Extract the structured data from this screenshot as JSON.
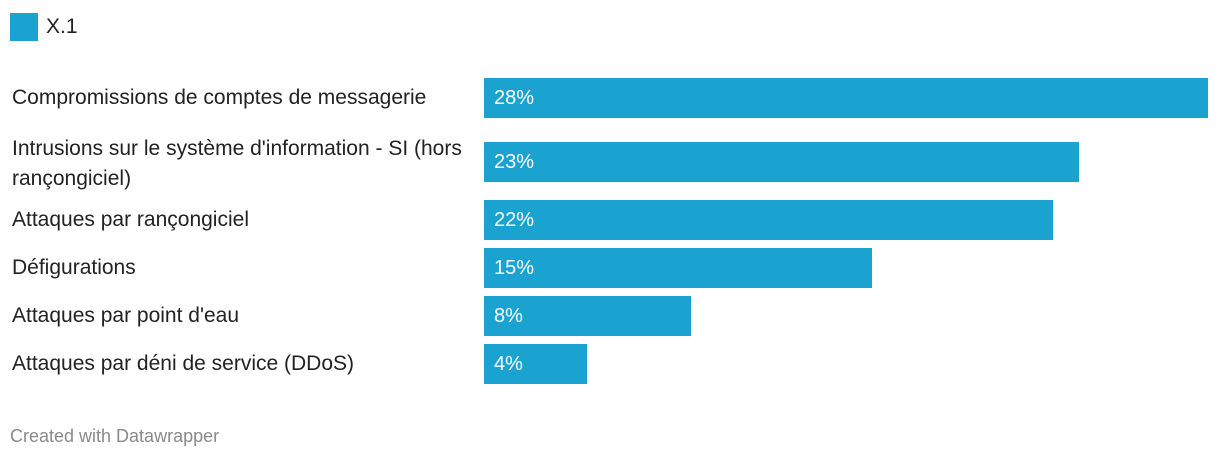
{
  "legend": {
    "label": "X.1",
    "color": "#1aa3d0"
  },
  "chart_data": {
    "type": "bar",
    "orientation": "horizontal",
    "categories": [
      "Compromissions de comptes de messagerie",
      "Intrusions sur le système d'information - SI (hors rançongiciel)",
      "Attaques par rançongiciel",
      "Défigurations",
      "Attaques par point d'eau",
      "Attaques par déni de service (DDoS)"
    ],
    "series": [
      {
        "name": "X.1",
        "values": [
          28,
          23,
          22,
          15,
          8,
          4
        ],
        "labels": [
          "28%",
          "23%",
          "22%",
          "15%",
          "8%",
          "4%"
        ],
        "color": "#1aa3d0"
      }
    ],
    "xlim": [
      0,
      28
    ],
    "grid": false,
    "legend_position": "top-left"
  },
  "footer": {
    "credit": "Created with Datawrapper"
  }
}
